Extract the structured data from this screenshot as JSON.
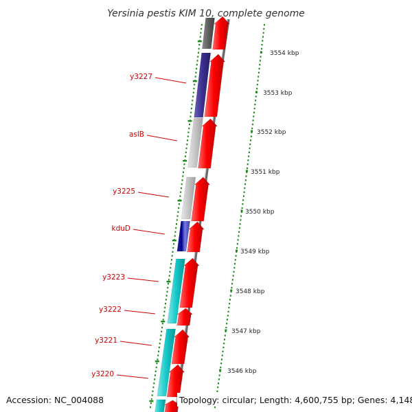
{
  "title": "Yersinia pestis KIM 10, complete genome",
  "footer": {
    "accession": "Accession: NC_004088",
    "topology": "Topology: circular; Length: 4,600,755 bp; Genes: 4,148"
  },
  "colors": {
    "forward": "#ee0000",
    "reverse_cyan": "#11c4c4",
    "reverse_purple": "#3a2f8c",
    "reverse_gray": "#bdbdbd",
    "reverse_dark": "#606060",
    "label": "#cc0000",
    "dots": "#1a8a1a"
  },
  "kbp_ticks": [
    "3554 kbp",
    "3553 kbp",
    "3552 kbp",
    "3551 kbp",
    "3550 kbp",
    "3549 kbp",
    "3548 kbp",
    "3547 kbp",
    "3546 kbp"
  ],
  "gene_labels": [
    {
      "name": "y3227",
      "color": "purple"
    },
    {
      "name": "aslB",
      "color": "gray"
    },
    {
      "name": "y3225",
      "color": "gray"
    },
    {
      "name": "kduD",
      "color": "kdud"
    },
    {
      "name": "y3223",
      "color": "cyan"
    },
    {
      "name": "y3222",
      "color": "cyan"
    },
    {
      "name": "y3221",
      "color": "cyan"
    },
    {
      "name": "y3220",
      "color": "cyan"
    }
  ]
}
